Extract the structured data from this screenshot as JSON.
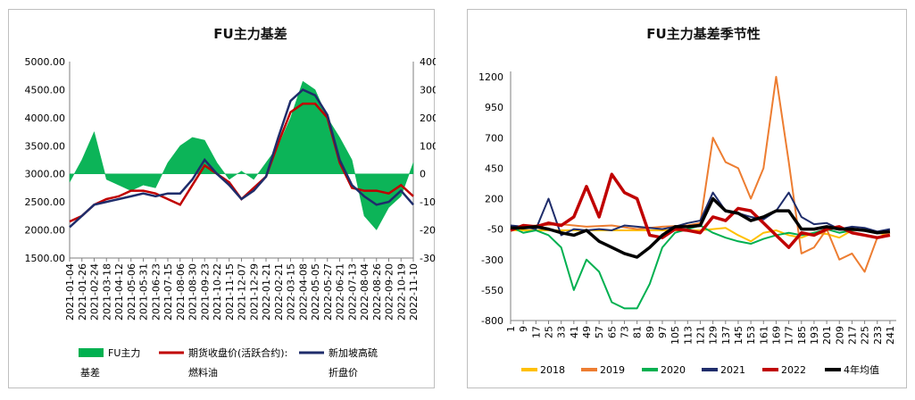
{
  "chart_data": [
    {
      "type": "line",
      "title": "FU主力基差",
      "y_left_ticks": [
        "5000.00",
        "4500.00",
        "4000.00",
        "3500.00",
        "3000.00",
        "2500.00",
        "2000.00",
        "1500.00"
      ],
      "y_left_range": [
        1500,
        5000
      ],
      "y_right_ticks": [
        "400",
        "300",
        "200",
        "100",
        "0",
        "-100",
        "-200",
        "-300"
      ],
      "y_right_range": [
        -300,
        400
      ],
      "x_ticks": [
        "2021-01-04",
        "2021-01-26",
        "2021-02-24",
        "2021-03-18",
        "2021-04-12",
        "2021-05-06",
        "2021-05-31",
        "2021-06-23",
        "2021-07-15",
        "2021-08-06",
        "2021-08-30",
        "2021-09-23",
        "2021-10-22",
        "2021-11-15",
        "2021-12-07",
        "2021-12-29",
        "2022-01-21",
        "2022-02-21",
        "2022-03-15",
        "2022-04-08",
        "2022-05-05",
        "2022-05-27",
        "2022-06-21",
        "2022-07-13",
        "2022-08-04",
        "2022-08-26",
        "2022-09-20",
        "2022-10-19",
        "2022-11-10"
      ],
      "legend_placement": "bottom",
      "series": [
        {
          "name": "FU主力基差",
          "axis": "right",
          "kind": "bar",
          "color": "#00b050",
          "x": [
            0,
            1,
            2,
            3,
            4,
            5,
            6,
            7,
            8,
            9,
            10,
            11,
            12,
            13,
            14,
            15,
            16,
            17,
            18,
            19,
            20,
            21,
            22,
            23,
            24,
            25,
            26,
            27,
            28
          ],
          "values": [
            -30,
            50,
            150,
            -20,
            -40,
            -60,
            -40,
            -50,
            40,
            100,
            130,
            120,
            40,
            -20,
            10,
            -20,
            40,
            100,
            200,
            330,
            300,
            200,
            130,
            50,
            -150,
            -200,
            -120,
            -80,
            40
          ]
        },
        {
          "name": "期货收盘价(活跃合约):燃料油",
          "axis": "left",
          "kind": "line",
          "color": "#c00000",
          "x": [
            0,
            1,
            2,
            3,
            4,
            5,
            6,
            7,
            8,
            9,
            10,
            11,
            12,
            13,
            14,
            15,
            16,
            17,
            18,
            19,
            20,
            21,
            22,
            23,
            24,
            25,
            26,
            27,
            28
          ],
          "values": [
            2150,
            2250,
            2450,
            2550,
            2600,
            2700,
            2700,
            2650,
            2550,
            2450,
            2800,
            3150,
            3000,
            2850,
            2550,
            2750,
            2950,
            3550,
            4100,
            4250,
            4250,
            4000,
            3200,
            2750,
            2700,
            2700,
            2650,
            2800,
            2600
          ]
        },
        {
          "name": "新加坡高硫折盘价",
          "axis": "left",
          "kind": "line",
          "color": "#1f2d6b",
          "x": [
            0,
            1,
            2,
            3,
            4,
            5,
            6,
            7,
            8,
            9,
            10,
            11,
            12,
            13,
            14,
            15,
            16,
            17,
            18,
            19,
            20,
            21,
            22,
            23,
            24,
            25,
            26,
            27,
            28
          ],
          "values": [
            2050,
            2250,
            2450,
            2500,
            2550,
            2600,
            2650,
            2600,
            2650,
            2650,
            2900,
            3250,
            3000,
            2800,
            2550,
            2700,
            2950,
            3650,
            4300,
            4500,
            4400,
            4050,
            3250,
            2800,
            2600,
            2450,
            2500,
            2700,
            2450
          ]
        }
      ]
    },
    {
      "type": "line",
      "title": "FU主力基差季节性",
      "y_ticks": [
        "1200",
        "950",
        "700",
        "450",
        "200",
        "-50",
        "-300",
        "-550",
        "-800"
      ],
      "ylim": [
        -800,
        1200
      ],
      "x_ticks": [
        "1",
        "9",
        "17",
        "25",
        "33",
        "41",
        "49",
        "57",
        "65",
        "73",
        "81",
        "89",
        "97",
        "105",
        "113",
        "121",
        "129",
        "137",
        "145",
        "153",
        "161",
        "169",
        "177",
        "185",
        "193",
        "201",
        "209",
        "217",
        "225",
        "233",
        "241"
      ],
      "legend_placement": "bottom",
      "series": [
        {
          "name": "2018",
          "color": "#ffc000",
          "x": [
            1,
            121,
            137,
            145,
            153,
            161,
            169,
            177,
            185,
            193,
            201,
            209,
            217,
            225,
            233,
            241
          ],
          "values": [
            -60,
            -60,
            -40,
            -100,
            -150,
            -80,
            -60,
            -100,
            -120,
            -80,
            -90,
            -120,
            -60,
            -50,
            -80,
            -100
          ]
        },
        {
          "name": "2019",
          "color": "#ed7d31",
          "x": [
            1,
            17,
            33,
            49,
            65,
            81,
            97,
            113,
            121,
            129,
            137,
            145,
            153,
            161,
            169,
            177,
            185,
            193,
            201,
            209,
            217,
            225,
            233,
            241
          ],
          "values": [
            -50,
            -20,
            -10,
            -30,
            -20,
            -50,
            -30,
            -20,
            0,
            700,
            500,
            450,
            200,
            450,
            1200,
            500,
            -250,
            -200,
            -50,
            -300,
            -250,
            -400,
            -120,
            -80
          ]
        },
        {
          "name": "2020",
          "color": "#00b050",
          "x": [
            1,
            9,
            17,
            25,
            33,
            41,
            49,
            57,
            65,
            73,
            81,
            89,
            97,
            105,
            113,
            121,
            129,
            137,
            145,
            153,
            161,
            169,
            177,
            185,
            193,
            201,
            209,
            217,
            225,
            233,
            241
          ],
          "values": [
            -30,
            -80,
            -60,
            -100,
            -200,
            -550,
            -300,
            -400,
            -650,
            -700,
            -700,
            -500,
            -200,
            -80,
            -50,
            -20,
            -80,
            -120,
            -150,
            -170,
            -130,
            -100,
            -80,
            -100,
            -80,
            -50,
            -80,
            -60,
            -50,
            -80,
            -70
          ]
        },
        {
          "name": "2021",
          "color": "#1f2d6b",
          "x": [
            1,
            9,
            17,
            25,
            33,
            41,
            49,
            57,
            65,
            73,
            81,
            89,
            97,
            105,
            113,
            121,
            129,
            137,
            145,
            153,
            161,
            169,
            177,
            185,
            193,
            201,
            209,
            217,
            225,
            233,
            241
          ],
          "values": [
            -20,
            -30,
            -50,
            200,
            -100,
            -50,
            -60,
            -50,
            -60,
            -20,
            -30,
            -40,
            -50,
            -30,
            0,
            20,
            250,
            100,
            80,
            50,
            30,
            100,
            250,
            50,
            -10,
            0,
            -50,
            -30,
            -40,
            -70,
            -50
          ]
        },
        {
          "name": "2022",
          "color": "#c00000",
          "x": [
            1,
            9,
            17,
            25,
            33,
            41,
            49,
            57,
            65,
            73,
            81,
            89,
            97,
            105,
            113,
            121,
            129,
            137,
            145,
            153,
            161,
            169,
            177,
            185,
            193,
            201,
            209,
            217,
            225,
            233,
            241
          ],
          "values": [
            -60,
            -20,
            -30,
            0,
            -20,
            50,
            300,
            50,
            400,
            250,
            200,
            -100,
            -120,
            -50,
            -60,
            -80,
            50,
            20,
            120,
            100,
            0,
            -100,
            -200,
            -80,
            -100,
            -50,
            -30,
            -80,
            -100,
            -120,
            -100
          ]
        },
        {
          "name": "4年均值",
          "color": "#000000",
          "x": [
            1,
            9,
            17,
            25,
            33,
            41,
            49,
            57,
            65,
            73,
            81,
            89,
            97,
            105,
            113,
            121,
            129,
            137,
            145,
            153,
            161,
            169,
            177,
            185,
            193,
            201,
            209,
            217,
            225,
            233,
            241
          ],
          "values": [
            -40,
            -40,
            -30,
            -50,
            -80,
            -100,
            -60,
            -150,
            -200,
            -250,
            -280,
            -200,
            -100,
            -30,
            -30,
            -20,
            200,
            100,
            80,
            20,
            50,
            100,
            100,
            -50,
            -50,
            -30,
            -50,
            -50,
            -60,
            -80,
            -70
          ]
        }
      ]
    }
  ]
}
